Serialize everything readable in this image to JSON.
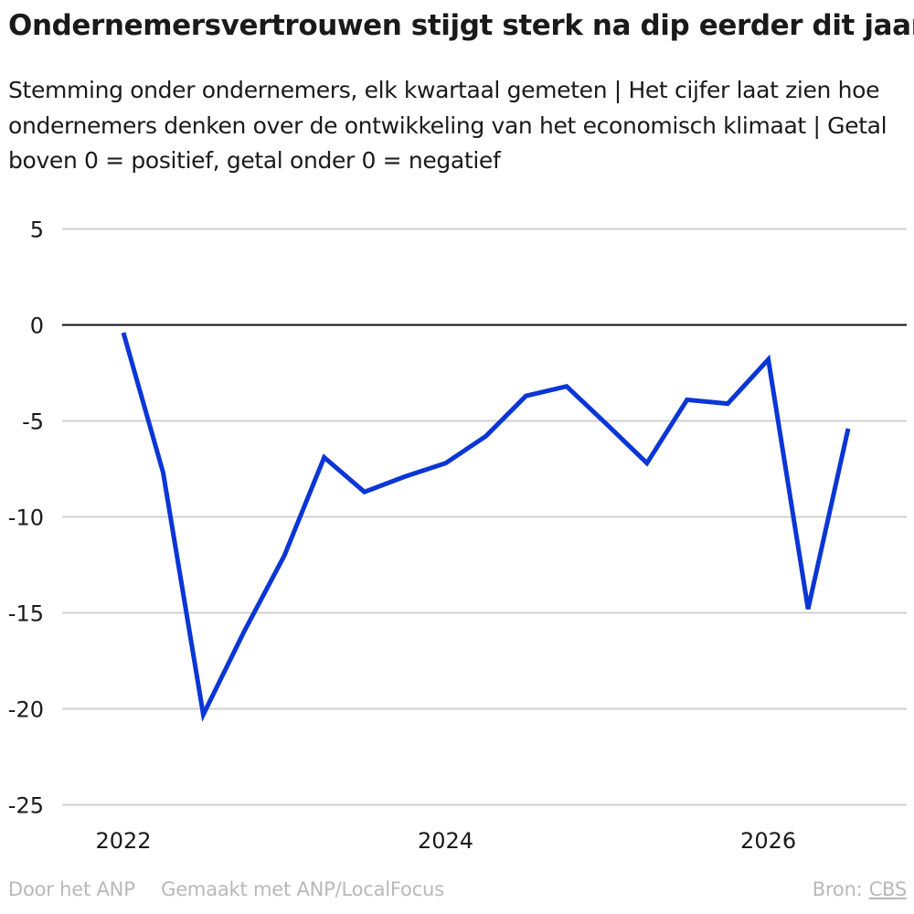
{
  "chart_data": {
    "type": "line",
    "title": "Ondernemersvertrouwen stijgt sterk na dip eerder dit jaar",
    "subtitle": "Stemming onder ondernemers, elk kwartaal gemeten | Het cijfer laat zien hoe ondernemers denken over de ontwikkeling van het economisch klimaat | Getal boven 0 = positief, getal onder 0 = negatief",
    "xlabel": "",
    "ylabel": "",
    "ylim": [
      -25,
      5
    ],
    "yticks": [
      5,
      0,
      -5,
      -10,
      -15,
      -20,
      -25
    ],
    "xlim": [
      "2021-10-01",
      "2026-12-31"
    ],
    "xticks": [
      {
        "label": "2022",
        "date": "2022-01-01"
      },
      {
        "label": "2024",
        "date": "2024-01-01"
      },
      {
        "label": "2026",
        "date": "2026-01-01"
      }
    ],
    "grid": true,
    "legend": "none",
    "color": "#0b36d6",
    "series": [
      {
        "x": [
          "2022-01-01",
          "2022-04-01",
          "2022-07-01",
          "2022-10-01",
          "2023-01-01",
          "2023-04-01",
          "2023-07-01",
          "2023-10-01",
          "2024-01-01",
          "2024-04-01",
          "2024-07-01",
          "2024-10-01",
          "2025-01-01",
          "2025-04-01",
          "2025-07-01",
          "2025-10-01",
          "2026-01-01",
          "2026-04-01",
          "2026-07-01"
        ],
        "values": [
          -0.4,
          -7.7,
          -20.3,
          -16.0,
          -12.0,
          -6.9,
          -8.7,
          -7.9,
          -7.2,
          -5.8,
          -3.7,
          -3.2,
          -5.2,
          -7.2,
          -3.9,
          -4.1,
          -1.8,
          -14.8,
          -5.4
        ]
      }
    ]
  },
  "footer": {
    "credit_anp": "Door het ANP",
    "credit_made": "Gemaakt met ANP/LocalFocus",
    "source_label": "Bron:",
    "source_name": "CBS"
  }
}
